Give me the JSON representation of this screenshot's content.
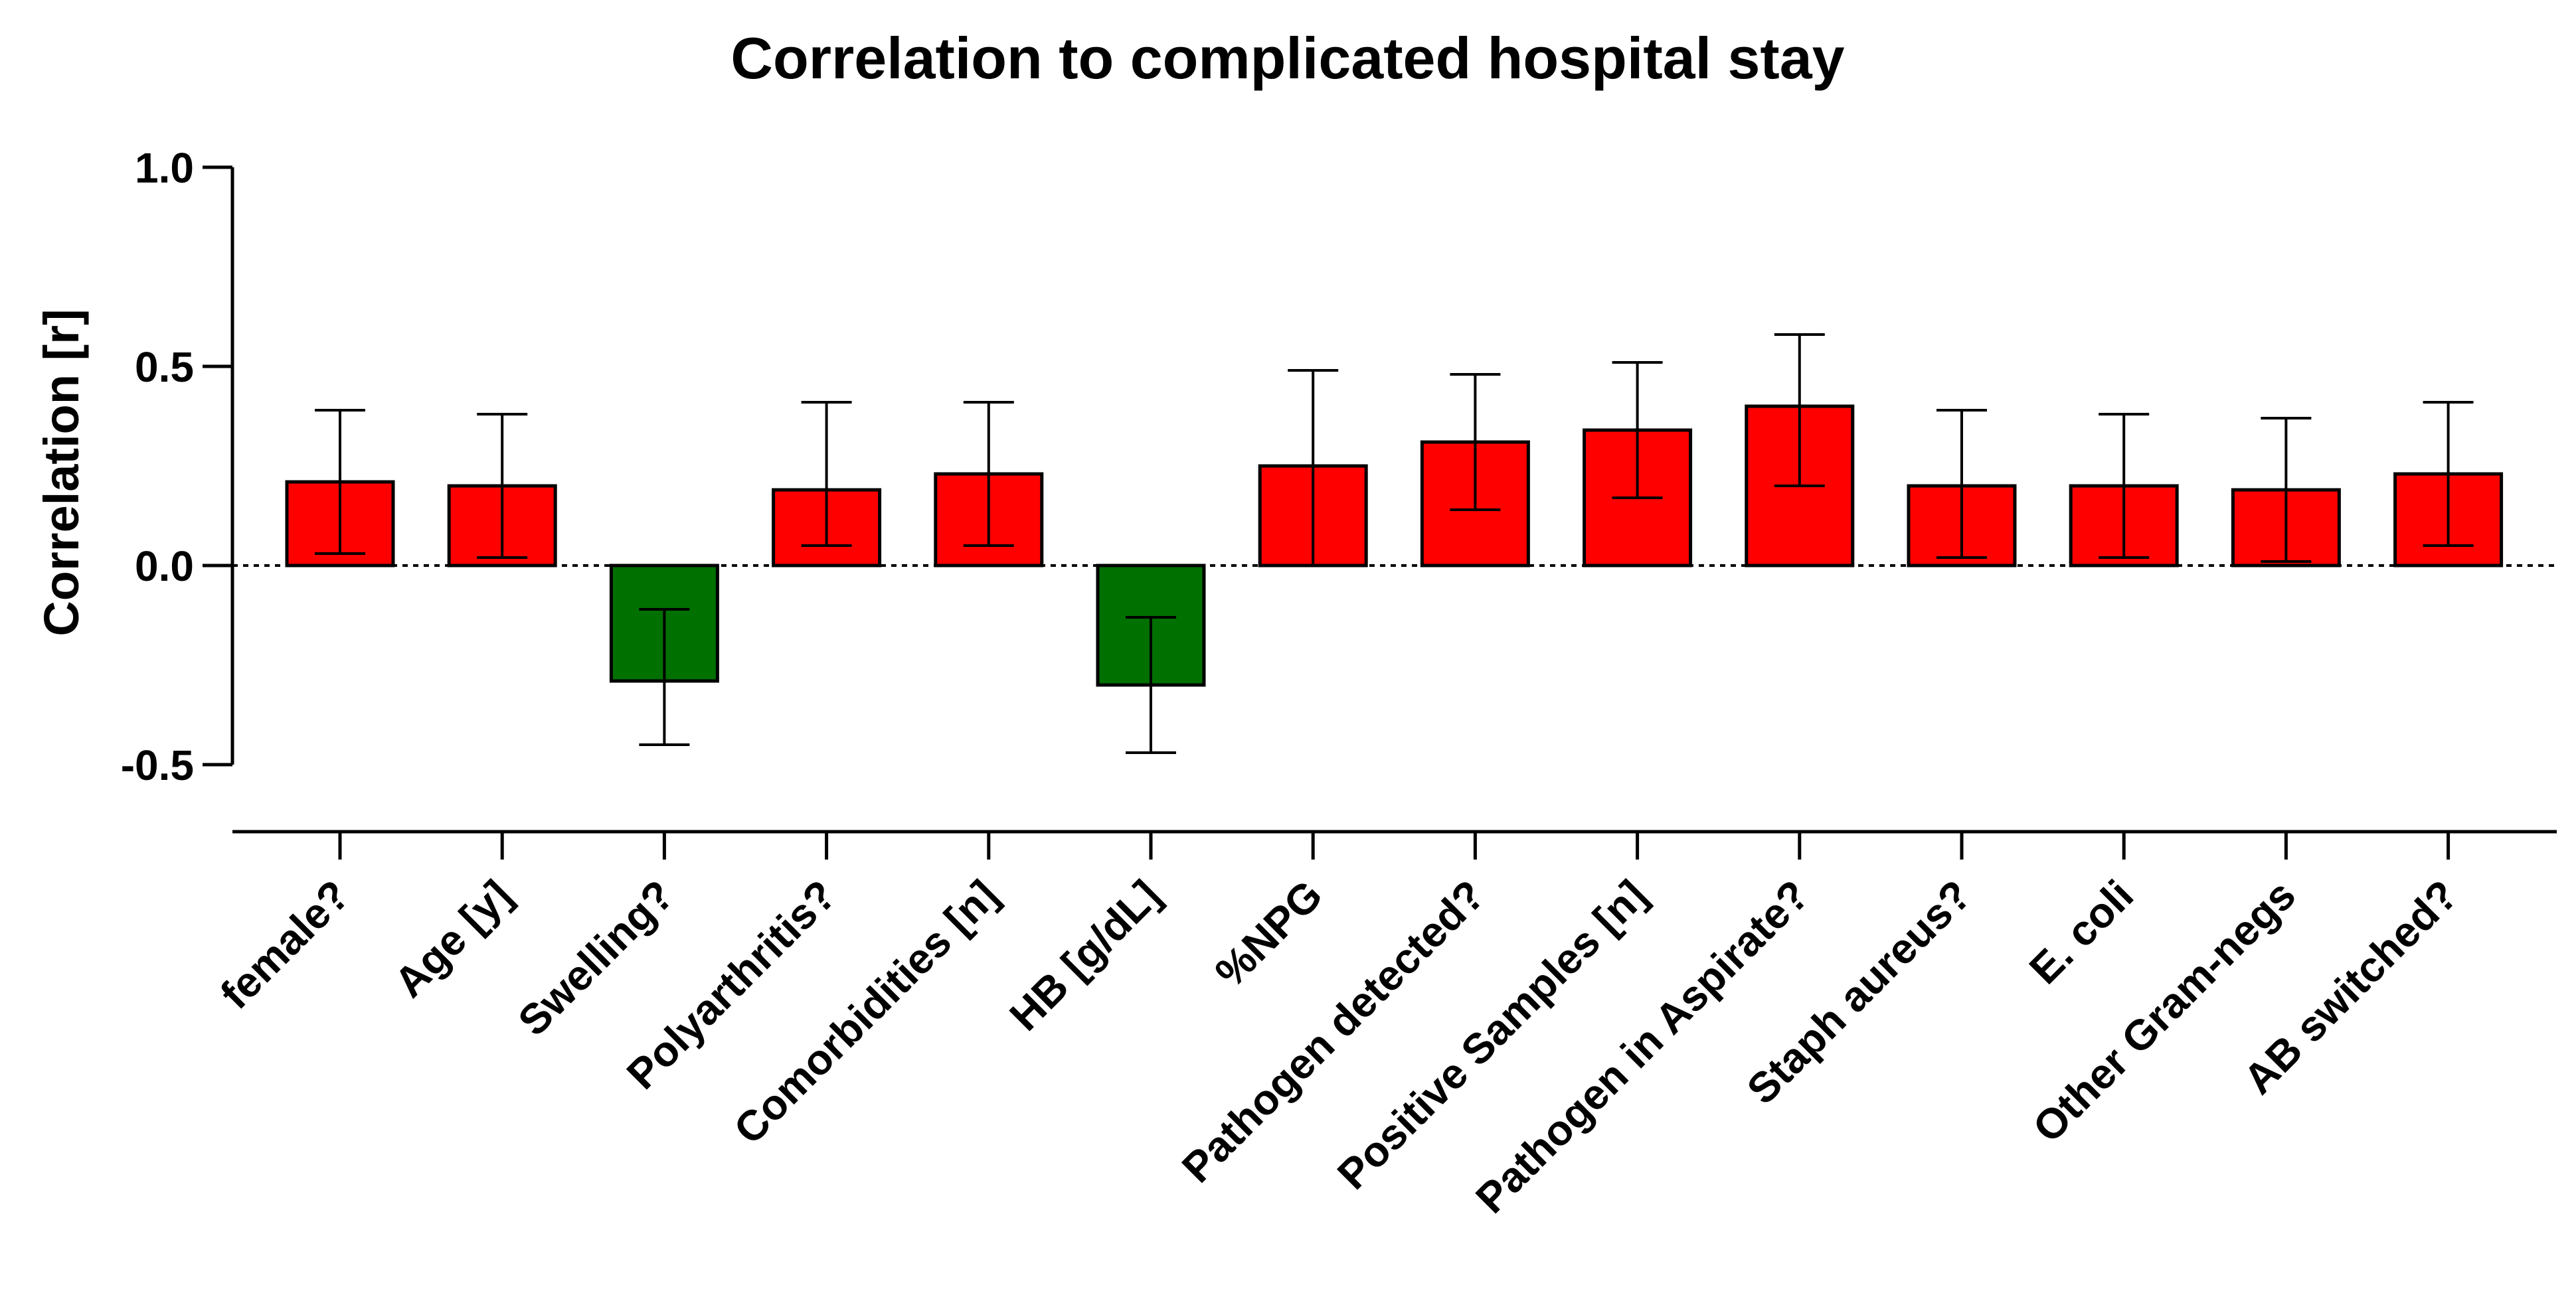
{
  "chart_data": {
    "type": "bar",
    "title": "Correlation to complicated hospital stay",
    "xlabel": "",
    "ylabel": "Correlation [r]",
    "ylim": [
      -0.5,
      1.0
    ],
    "yticks": [
      -0.5,
      0.0,
      0.5,
      1.0
    ],
    "ytick_labels": [
      "-0.5",
      "0.0",
      "0.5",
      "1.0"
    ],
    "categories": [
      "female?",
      "Age [y]",
      "Swelling?",
      "Polyarthritis?",
      "Comorbidities [n]",
      "HB [g/dL]",
      "%NPG",
      "Pathogen detected?",
      "Positive Samples [n]",
      "Pathogen in Aspirate?",
      "Staph aureus?",
      "E. coli",
      "Other Gram-negs",
      "AB switched?"
    ],
    "values": [
      0.21,
      0.2,
      -0.29,
      0.19,
      0.23,
      -0.3,
      0.25,
      0.31,
      0.34,
      0.4,
      0.2,
      0.2,
      0.19,
      0.23
    ],
    "error_low": [
      0.03,
      0.02,
      -0.45,
      0.05,
      0.05,
      -0.47,
      0.0,
      0.14,
      0.17,
      0.2,
      0.02,
      0.02,
      0.01,
      0.05
    ],
    "error_high": [
      0.39,
      0.38,
      -0.11,
      0.41,
      0.41,
      -0.13,
      0.49,
      0.48,
      0.51,
      0.58,
      0.39,
      0.38,
      0.37,
      0.41
    ],
    "colors": {
      "positive": "#ff0000",
      "negative": "#007000"
    },
    "zero_line": "dotted"
  }
}
